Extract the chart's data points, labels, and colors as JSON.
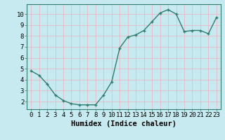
{
  "x": [
    0,
    1,
    2,
    3,
    4,
    5,
    6,
    7,
    8,
    9,
    10,
    11,
    12,
    13,
    14,
    15,
    16,
    17,
    18,
    19,
    20,
    21,
    22,
    23
  ],
  "y": [
    4.8,
    4.4,
    3.6,
    2.6,
    2.1,
    1.8,
    1.7,
    1.7,
    1.7,
    2.6,
    3.8,
    6.9,
    7.9,
    8.1,
    8.5,
    9.3,
    10.1,
    10.4,
    10.0,
    8.4,
    8.5,
    8.5,
    8.2,
    9.7
  ],
  "line_color": "#2e7d6e",
  "marker_color": "#2e7d6e",
  "bg_color": "#c6eaf0",
  "grid_color": "#e8b8c8",
  "xlabel": "Humidex (Indice chaleur)",
  "xlim": [
    -0.5,
    23.5
  ],
  "ylim": [
    1.3,
    10.9
  ],
  "yticks": [
    2,
    3,
    4,
    5,
    6,
    7,
    8,
    9,
    10
  ],
  "xticks": [
    0,
    1,
    2,
    3,
    4,
    5,
    6,
    7,
    8,
    9,
    10,
    11,
    12,
    13,
    14,
    15,
    16,
    17,
    18,
    19,
    20,
    21,
    22,
    23
  ],
  "xlabel_fontsize": 7.5,
  "tick_fontsize": 6.5,
  "linewidth": 1.0,
  "markersize": 2.5
}
